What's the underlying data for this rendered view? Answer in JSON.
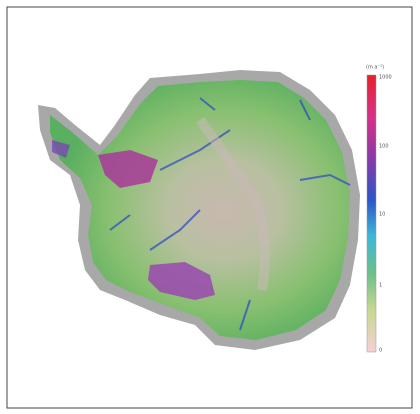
{
  "legend": {
    "title": "(m a⁻¹)",
    "ticks": [
      "1000",
      "100",
      "10",
      "1",
      "0"
    ]
  }
}
